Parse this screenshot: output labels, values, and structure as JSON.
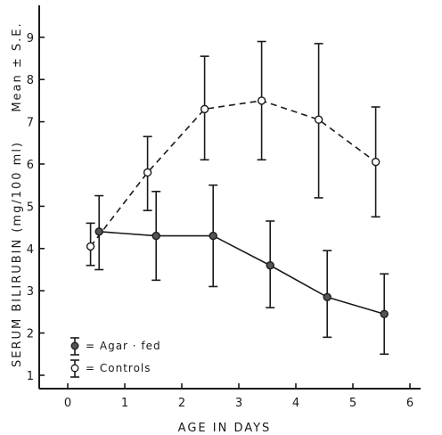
{
  "chart_data": {
    "type": "line",
    "title": "",
    "xlabel": "AGE IN DAYS",
    "ylabel_main": "SERUM BILIRUBIN (mg/100 ml)",
    "ylabel_stat": "Mean ± S.E.",
    "xlim": [
      -0.5,
      6.5
    ],
    "ylim": [
      0.6,
      9.9
    ],
    "xticks": [
      0,
      1,
      2,
      3,
      4,
      5,
      6
    ],
    "yticks": [
      1,
      2,
      3,
      4,
      5,
      6,
      7,
      8,
      9
    ],
    "grid": false,
    "legend_position": "bottom-left",
    "series": [
      {
        "name": "= Controls",
        "style": "dashed",
        "marker": "open-circle",
        "color": "#1a1a1a",
        "points": [
          {
            "x": 0.4,
            "y": 4.05,
            "lo": 3.6,
            "hi": 4.6
          },
          {
            "x": 1.4,
            "y": 5.8,
            "lo": 4.9,
            "hi": 6.65
          },
          {
            "x": 2.4,
            "y": 7.3,
            "lo": 6.1,
            "hi": 8.55
          },
          {
            "x": 3.4,
            "y": 7.5,
            "lo": 6.1,
            "hi": 8.9
          },
          {
            "x": 4.4,
            "y": 7.05,
            "lo": 5.2,
            "hi": 8.85
          },
          {
            "x": 5.4,
            "y": 6.05,
            "lo": 4.75,
            "hi": 7.35
          }
        ]
      },
      {
        "name": "= Agar · fed",
        "style": "solid",
        "marker": "filled-circle",
        "color": "#1a1a1a",
        "points": [
          {
            "x": 0.55,
            "y": 4.4,
            "lo": 3.5,
            "hi": 5.25
          },
          {
            "x": 1.55,
            "y": 4.3,
            "lo": 3.25,
            "hi": 5.35
          },
          {
            "x": 2.55,
            "y": 4.3,
            "lo": 3.1,
            "hi": 5.5
          },
          {
            "x": 3.55,
            "y": 3.6,
            "lo": 2.6,
            "hi": 4.65
          },
          {
            "x": 4.55,
            "y": 2.85,
            "lo": 1.9,
            "hi": 3.95
          },
          {
            "x": 5.55,
            "y": 2.45,
            "lo": 1.5,
            "hi": 3.4
          }
        ]
      }
    ]
  }
}
